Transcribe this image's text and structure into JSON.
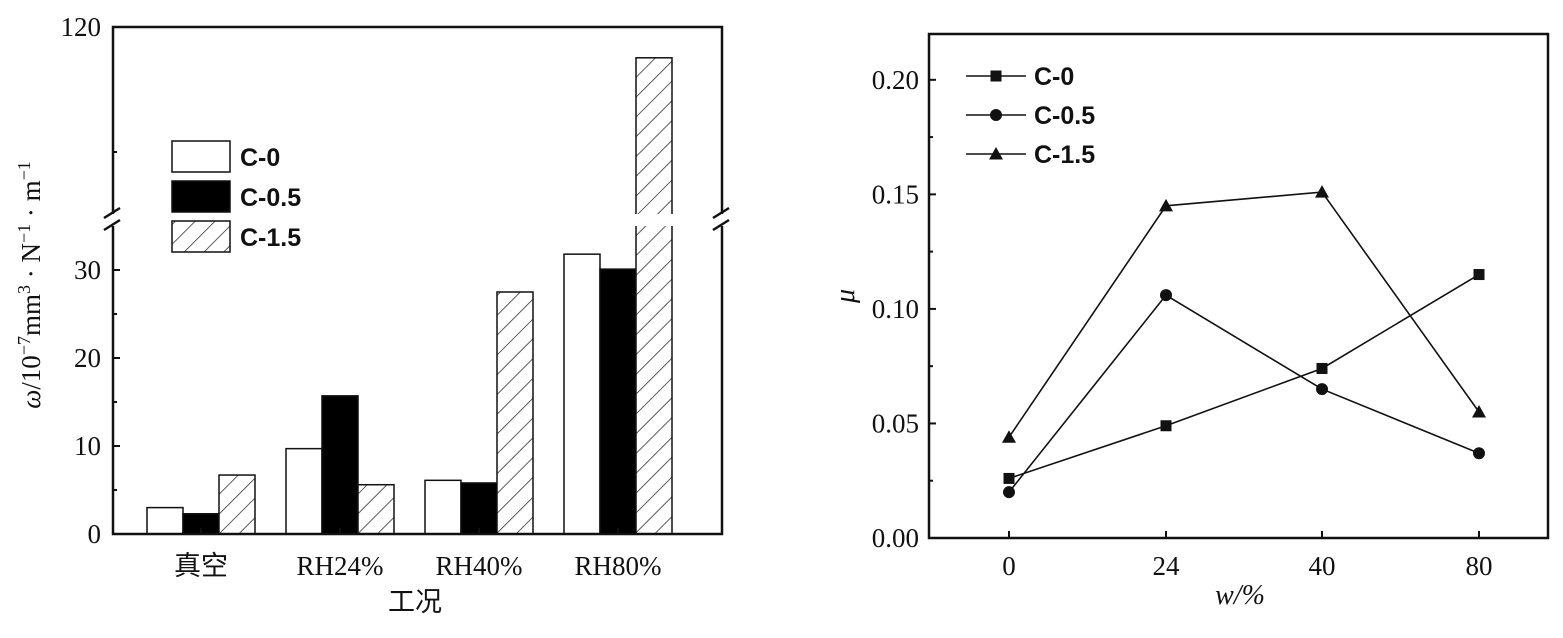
{
  "chart_data": [
    {
      "type": "bar",
      "title": "",
      "xlabel": "工况",
      "ylabel_parts": [
        "ω",
        "/10",
        "−7",
        "mm",
        "3",
        " · N",
        "−1",
        " · m",
        "−1"
      ],
      "categories": [
        "真空",
        "RH24%",
        "RH40%",
        "RH80%"
      ],
      "ylim": [
        0,
        120
      ],
      "y_break": {
        "lower_range": [
          0,
          35
        ],
        "upper_range": [
          35,
          120
        ]
      },
      "yticks": [
        "0",
        "10",
        "20",
        "30",
        "120"
      ],
      "legend_position": "upper-left",
      "series": [
        {
          "name": "C-0",
          "values": [
            3.0,
            9.7,
            6.1,
            31.8
          ],
          "pattern": "open"
        },
        {
          "name": "C-0.5",
          "values": [
            2.3,
            15.7,
            5.8,
            30.1
          ],
          "pattern": "solid"
        },
        {
          "name": "C-1.5",
          "values": [
            6.7,
            5.6,
            27.5,
            106
          ],
          "pattern": "hatched"
        }
      ]
    },
    {
      "type": "line",
      "title": "",
      "xlabel": "w/%",
      "ylabel": "μ",
      "x": [
        "0",
        "24",
        "40",
        "80"
      ],
      "ylim": [
        0,
        0.22
      ],
      "yticks": [
        "0.00",
        "0.05",
        "0.10",
        "0.15",
        "0.20"
      ],
      "legend_position": "upper-left",
      "series": [
        {
          "name": "C-0",
          "marker": "square",
          "values": [
            0.026,
            0.049,
            0.074,
            0.115
          ]
        },
        {
          "name": "C-0.5",
          "marker": "circle",
          "values": [
            0.02,
            0.106,
            0.065,
            0.037
          ]
        },
        {
          "name": "C-1.5",
          "marker": "triangle",
          "values": [
            0.044,
            0.145,
            0.151,
            0.055
          ]
        }
      ]
    }
  ]
}
